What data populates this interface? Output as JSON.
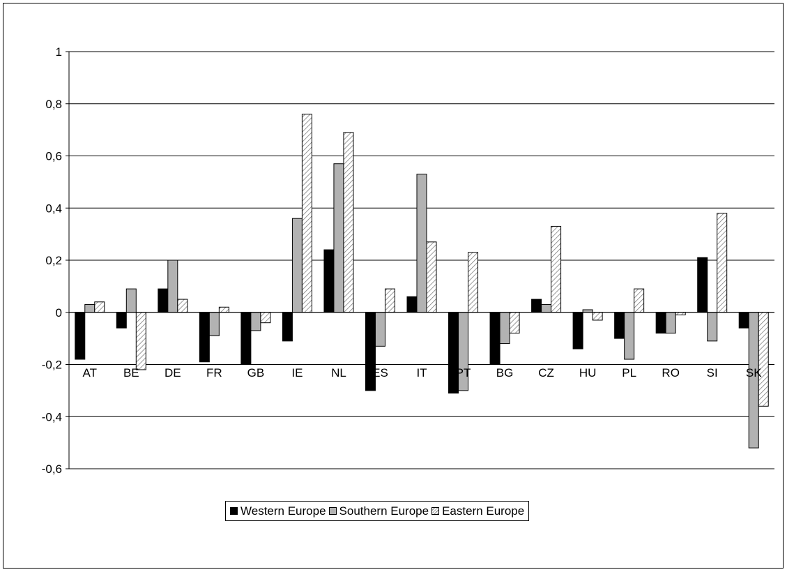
{
  "chart_data": {
    "type": "bar",
    "categories": [
      "AT",
      "BE",
      "DE",
      "FR",
      "GB",
      "IE",
      "NL",
      "ES",
      "IT",
      "PT",
      "BG",
      "CZ",
      "HU",
      "PL",
      "RO",
      "SI",
      "SK"
    ],
    "series": [
      {
        "name": "Western Europe",
        "color": "#000000",
        "values": [
          -0.18,
          -0.06,
          0.09,
          -0.19,
          -0.2,
          -0.11,
          0.24,
          -0.3,
          0.06,
          -0.31,
          -0.2,
          0.05,
          -0.14,
          -0.1,
          -0.08,
          0.21,
          -0.06
        ]
      },
      {
        "name": "Southern Europe",
        "color": "#b2b2b2",
        "values": [
          0.03,
          0.09,
          0.2,
          -0.09,
          -0.07,
          0.36,
          0.57,
          -0.13,
          0.53,
          -0.3,
          -0.12,
          0.03,
          0.01,
          -0.18,
          -0.08,
          -0.11,
          -0.52
        ]
      },
      {
        "name": "Eastern Europe",
        "color": "hatched",
        "values": [
          0.04,
          -0.22,
          0.05,
          0.02,
          -0.04,
          0.76,
          0.69,
          0.09,
          0.27,
          0.23,
          -0.08,
          0.33,
          -0.03,
          0.09,
          -0.01,
          0.38,
          -0.36
        ]
      }
    ],
    "y_ticks": [
      "1",
      "0,8",
      "0,6",
      "0,4",
      "0,2",
      "0",
      "-0,2",
      "-0,4",
      "-0,6"
    ],
    "ylim": [
      -0.6,
      1
    ],
    "grid": true,
    "legend_position": "bottom"
  }
}
